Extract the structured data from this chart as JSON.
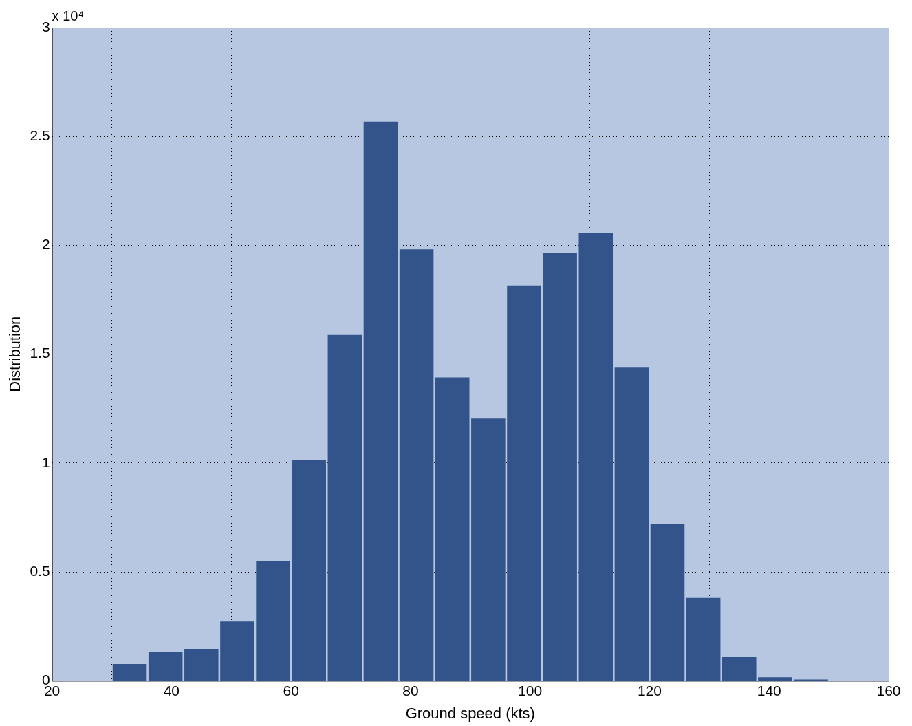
{
  "chart_data": {
    "type": "histogram",
    "xlabel": "Ground speed (kts)",
    "ylabel": "Distribution",
    "bins": [
      30,
      36,
      42,
      48,
      54,
      60,
      66,
      72,
      78,
      84,
      90,
      96,
      102,
      108,
      114,
      120,
      126,
      132,
      138,
      144,
      150
    ],
    "values": [
      0.077,
      0.134,
      0.147,
      0.272,
      0.551,
      1.015,
      1.588,
      2.568,
      1.982,
      1.393,
      1.204,
      1.816,
      1.966,
      2.056,
      1.438,
      0.72,
      0.381,
      0.109,
      0.016,
      0.006
    ],
    "color": "#32548a",
    "xlim": [
      20,
      160
    ],
    "xticks": [
      20,
      40,
      60,
      80,
      100,
      120,
      140,
      160
    ],
    "ylim": [
      0,
      3
    ],
    "yticks": [
      0,
      0.5,
      1,
      1.5,
      2,
      2.5,
      3
    ],
    "grid": true,
    "annotations": [
      "x 10⁴"
    ]
  }
}
